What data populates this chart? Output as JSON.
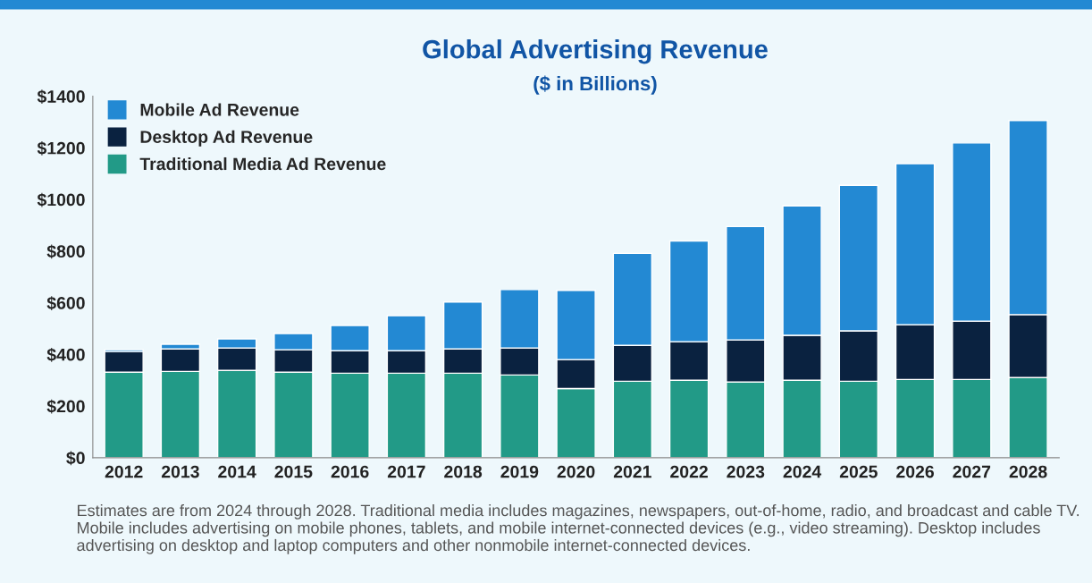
{
  "chart_data": {
    "type": "bar",
    "stacked": true,
    "title": "Global Advertising Revenue",
    "subtitle": "($ in Billions)",
    "categories": [
      "2012",
      "2013",
      "2014",
      "2015",
      "2016",
      "2017",
      "2018",
      "2019",
      "2020",
      "2021",
      "2022",
      "2023",
      "2024",
      "2025",
      "2026",
      "2027",
      "2028"
    ],
    "series": [
      {
        "name": "Traditional Media Ad Revenue",
        "color": "#229a87",
        "values": [
          331,
          334,
          338,
          331,
          327,
          327,
          327,
          320,
          268,
          296,
          300,
          293,
          300,
          296,
          303,
          303,
          310
        ]
      },
      {
        "name": "Desktop Ad Revenue",
        "color": "#0a2240",
        "values": [
          80,
          87,
          87,
          87,
          87,
          87,
          94,
          105,
          112,
          139,
          149,
          163,
          174,
          195,
          212,
          226,
          244
        ]
      },
      {
        "name": "Mobile Ad Revenue",
        "color": "#2389d3",
        "values": [
          7,
          18,
          35,
          63,
          98,
          136,
          182,
          226,
          268,
          356,
          390,
          439,
          501,
          564,
          624,
          690,
          752
        ]
      }
    ],
    "ylim": [
      0,
      1400
    ],
    "yticks": [
      {
        "value": 0,
        "label": "$0"
      },
      {
        "value": 200,
        "label": "$200"
      },
      {
        "value": 400,
        "label": "$400"
      },
      {
        "value": 600,
        "label": "$600"
      },
      {
        "value": 800,
        "label": "$800"
      },
      {
        "value": 1000,
        "label": "$1000"
      },
      {
        "value": 1200,
        "label": "$1200"
      },
      {
        "value": 1400,
        "label": "$1400"
      }
    ],
    "grid": false,
    "legend": "top left",
    "annotations": [
      "Estimates are from 2024 through 2028. Traditional media includes magazines, newspapers, out-of-home, radio, and broadcast and cable TV. Mobile includes advertising on mobile phones, tablets, and mobile internet-connected devices (e.g., video streaming). Desktop includes advertising on desktop and laptop computers and other nonmobile internet-connected devices."
    ]
  }
}
